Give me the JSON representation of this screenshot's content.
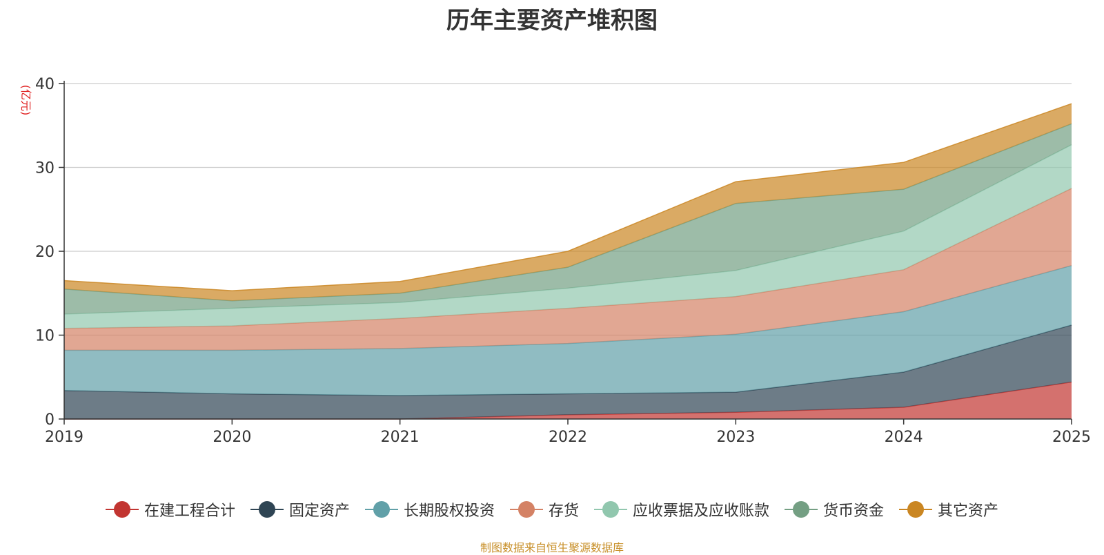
{
  "chart_data": {
    "type": "area",
    "stacked": true,
    "title": "历年主要资产堆积图",
    "ylabel": "(亿元)",
    "xlabel": "",
    "ylim": [
      0,
      40
    ],
    "yticks": [
      0,
      10,
      20,
      30,
      40
    ],
    "categories": [
      "2019",
      "2020",
      "2021",
      "2022",
      "2023",
      "2024",
      "2025"
    ],
    "series": [
      {
        "name": "在建工程合计",
        "color": "#c23531",
        "values": [
          0,
          0,
          0,
          0.5,
          0.8,
          1.4,
          4.4
        ]
      },
      {
        "name": "固定资产",
        "color": "#2f4554",
        "values": [
          3.4,
          3.0,
          2.8,
          2.5,
          2.4,
          4.2,
          6.8
        ]
      },
      {
        "name": "长期股权投资",
        "color": "#61a0a8",
        "values": [
          4.8,
          5.2,
          5.6,
          6.0,
          6.9,
          7.2,
          7.1
        ]
      },
      {
        "name": "存货",
        "color": "#d48265",
        "values": [
          2.6,
          2.9,
          3.6,
          4.2,
          4.5,
          5.0,
          9.2
        ]
      },
      {
        "name": "应收票据及应收账款",
        "color": "#91c7ae",
        "values": [
          1.7,
          2.1,
          1.9,
          2.4,
          3.1,
          4.6,
          5.2
        ]
      },
      {
        "name": "货币资金",
        "color": "#749f83",
        "values": [
          3.0,
          0.9,
          1.1,
          2.5,
          8.0,
          5.0,
          2.5
        ]
      },
      {
        "name": "其它资产",
        "color": "#ca8622",
        "values": [
          1.0,
          1.2,
          1.4,
          1.9,
          2.6,
          3.2,
          2.4
        ]
      }
    ],
    "legend_position": "bottom-center",
    "grid": true
  },
  "source_note": "制图数据来自恒生聚源数据库"
}
